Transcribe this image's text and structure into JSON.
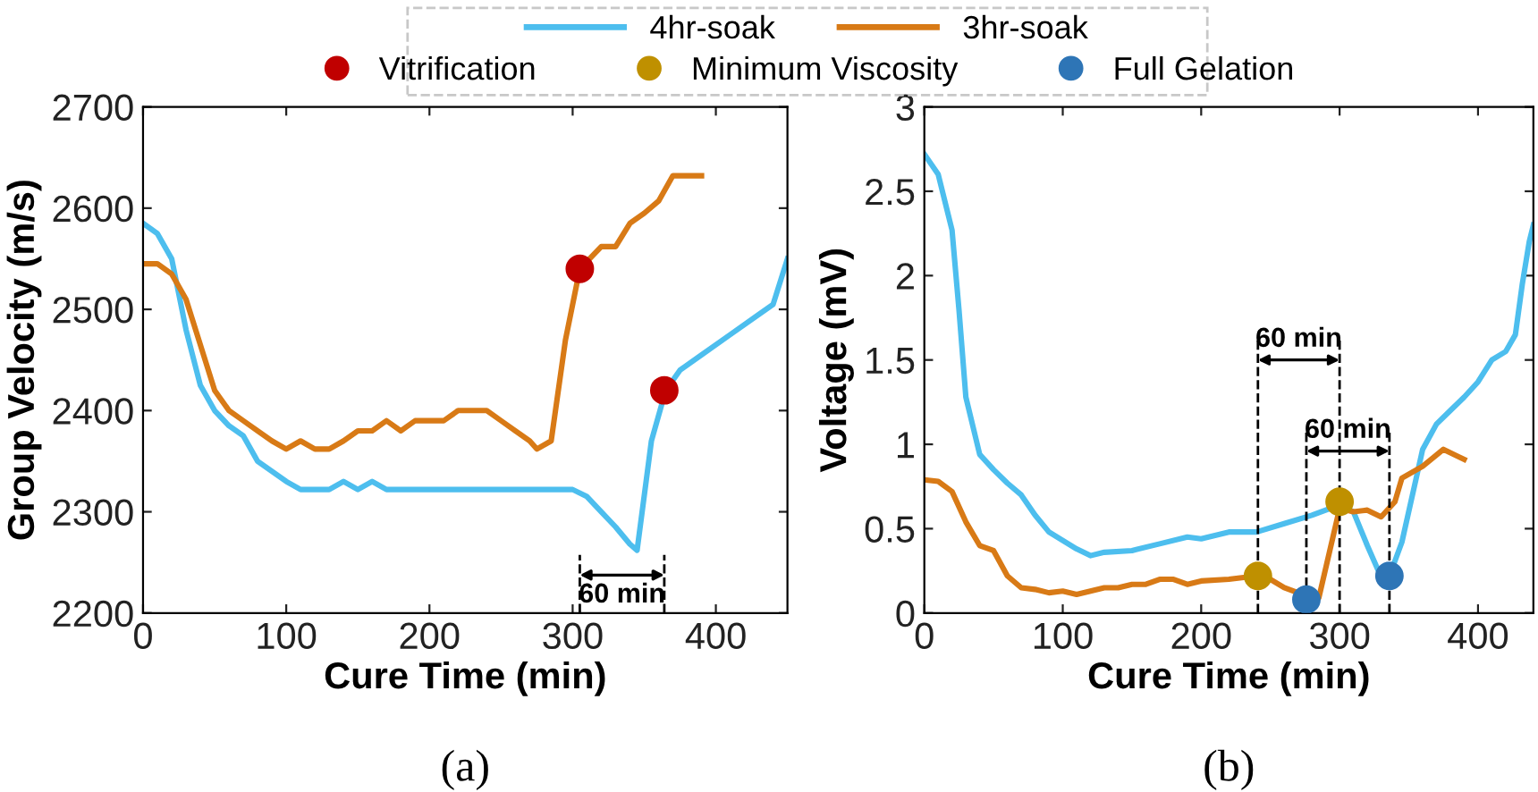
{
  "chart_data": [
    {
      "type": "line",
      "xlabel": "Cure Time (min)",
      "ylabel": "Group Velocity (m/s)",
      "xlim": [
        0,
        450
      ],
      "ylim": [
        2200,
        2700
      ],
      "xticks": [
        0,
        100,
        200,
        300,
        400
      ],
      "yticks": [
        2200,
        2300,
        2400,
        2500,
        2600,
        2700
      ],
      "grid": false,
      "legend": "top",
      "series": [
        {
          "name": "4hr-soak",
          "color": "#4dbeee",
          "x": [
            0,
            10,
            20,
            30,
            40,
            50,
            60,
            70,
            80,
            90,
            100,
            110,
            130,
            140,
            150,
            160,
            170,
            300,
            310,
            320,
            330,
            340,
            345,
            355,
            365,
            375,
            390,
            410,
            430,
            440,
            450
          ],
          "values": [
            2585,
            2575,
            2550,
            2480,
            2425,
            2400,
            2385,
            2375,
            2350,
            2340,
            2330,
            2322,
            2322,
            2330,
            2322,
            2330,
            2322,
            2322,
            2315,
            2300,
            2285,
            2268,
            2262,
            2370,
            2420,
            2440,
            2455,
            2475,
            2495,
            2505,
            2550
          ]
        },
        {
          "name": "3hr-soak",
          "color": "#d87a16",
          "x": [
            0,
            10,
            20,
            30,
            40,
            50,
            60,
            70,
            80,
            90,
            100,
            110,
            120,
            130,
            140,
            150,
            160,
            170,
            180,
            190,
            210,
            220,
            240,
            250,
            260,
            270,
            275,
            285,
            295,
            305,
            320,
            330,
            340,
            350,
            360,
            370,
            390
          ],
          "values": [
            2545,
            2545,
            2535,
            2510,
            2465,
            2420,
            2400,
            2390,
            2380,
            2370,
            2362,
            2370,
            2362,
            2362,
            2370,
            2380,
            2380,
            2390,
            2380,
            2390,
            2390,
            2400,
            2400,
            2390,
            2380,
            2370,
            2362,
            2370,
            2470,
            2540,
            2562,
            2562,
            2585,
            2595,
            2607,
            2632,
            2632
          ]
        },
        {
          "name": "Vitrification",
          "type": "scatter",
          "marker": "circle",
          "color": "#c00000",
          "x": [
            305,
            364
          ],
          "values": [
            2540,
            2420
          ]
        }
      ],
      "ref_lines": [
        {
          "axis": "x",
          "value": 305,
          "line_style": "dashed",
          "color": "#000000"
        },
        {
          "axis": "x",
          "value": 364,
          "line_style": "dashed",
          "color": "#000000"
        }
      ],
      "annotations": [
        "60 min",
        "(a)"
      ]
    },
    {
      "type": "line",
      "xlabel": "Cure Time (min)",
      "ylabel": "Voltage (mV)",
      "xlim": [
        0,
        440
      ],
      "ylim": [
        0,
        3
      ],
      "xticks": [
        0,
        100,
        200,
        300,
        400
      ],
      "yticks": [
        0,
        0.5,
        1,
        1.5,
        2,
        2.5,
        3
      ],
      "grid": false,
      "legend": "top",
      "series": [
        {
          "name": "4hr-soak",
          "color": "#4dbeee",
          "x": [
            0,
            10,
            20,
            25,
            30,
            40,
            50,
            60,
            70,
            80,
            90,
            100,
            110,
            120,
            130,
            150,
            170,
            190,
            200,
            220,
            240,
            260,
            280,
            300,
            310,
            320,
            328,
            336,
            345,
            360,
            370,
            380,
            390,
            400,
            410,
            420,
            427,
            432,
            437,
            440
          ],
          "values": [
            2.72,
            2.6,
            2.27,
            1.8,
            1.28,
            0.94,
            0.85,
            0.77,
            0.7,
            0.58,
            0.48,
            0.43,
            0.38,
            0.34,
            0.36,
            0.37,
            0.41,
            0.45,
            0.44,
            0.48,
            0.48,
            0.53,
            0.58,
            0.64,
            0.6,
            0.4,
            0.25,
            0.22,
            0.42,
            0.97,
            1.12,
            1.2,
            1.28,
            1.37,
            1.5,
            1.55,
            1.65,
            1.95,
            2.2,
            2.3
          ]
        },
        {
          "name": "3hr-soak",
          "color": "#d87a16",
          "x": [
            0,
            10,
            20,
            30,
            40,
            50,
            60,
            70,
            80,
            90,
            100,
            110,
            120,
            130,
            140,
            150,
            160,
            170,
            180,
            190,
            200,
            220,
            240,
            250,
            260,
            270,
            285,
            300,
            310,
            320,
            330,
            340,
            345,
            360,
            375,
            390
          ],
          "values": [
            0.79,
            0.78,
            0.72,
            0.54,
            0.4,
            0.37,
            0.22,
            0.15,
            0.14,
            0.12,
            0.13,
            0.11,
            0.13,
            0.15,
            0.15,
            0.17,
            0.17,
            0.2,
            0.2,
            0.17,
            0.19,
            0.2,
            0.22,
            0.2,
            0.15,
            0.12,
            0.09,
            0.62,
            0.6,
            0.61,
            0.57,
            0.66,
            0.8,
            0.87,
            0.97,
            0.91
          ]
        },
        {
          "name": "Minimum Viscosity",
          "type": "scatter",
          "marker": "circle",
          "color": "#bf9000",
          "x": [
            241,
            300
          ],
          "values": [
            0.22,
            0.66
          ]
        },
        {
          "name": "Full Gelation",
          "type": "scatter",
          "marker": "circle",
          "color": "#2e75b6",
          "x": [
            276,
            336
          ],
          "values": [
            0.08,
            0.22
          ]
        }
      ],
      "ref_lines": [
        {
          "axis": "x",
          "value": 241,
          "line_style": "dashed",
          "color": "#000000"
        },
        {
          "axis": "x",
          "value": 300,
          "line_style": "dashed",
          "color": "#000000"
        },
        {
          "axis": "x",
          "value": 276,
          "line_style": "dashed",
          "color": "#000000"
        },
        {
          "axis": "x",
          "value": 336,
          "line_style": "dashed",
          "color": "#000000"
        }
      ],
      "annotations": [
        "60 min",
        "60 min",
        "(b)"
      ]
    }
  ]
}
